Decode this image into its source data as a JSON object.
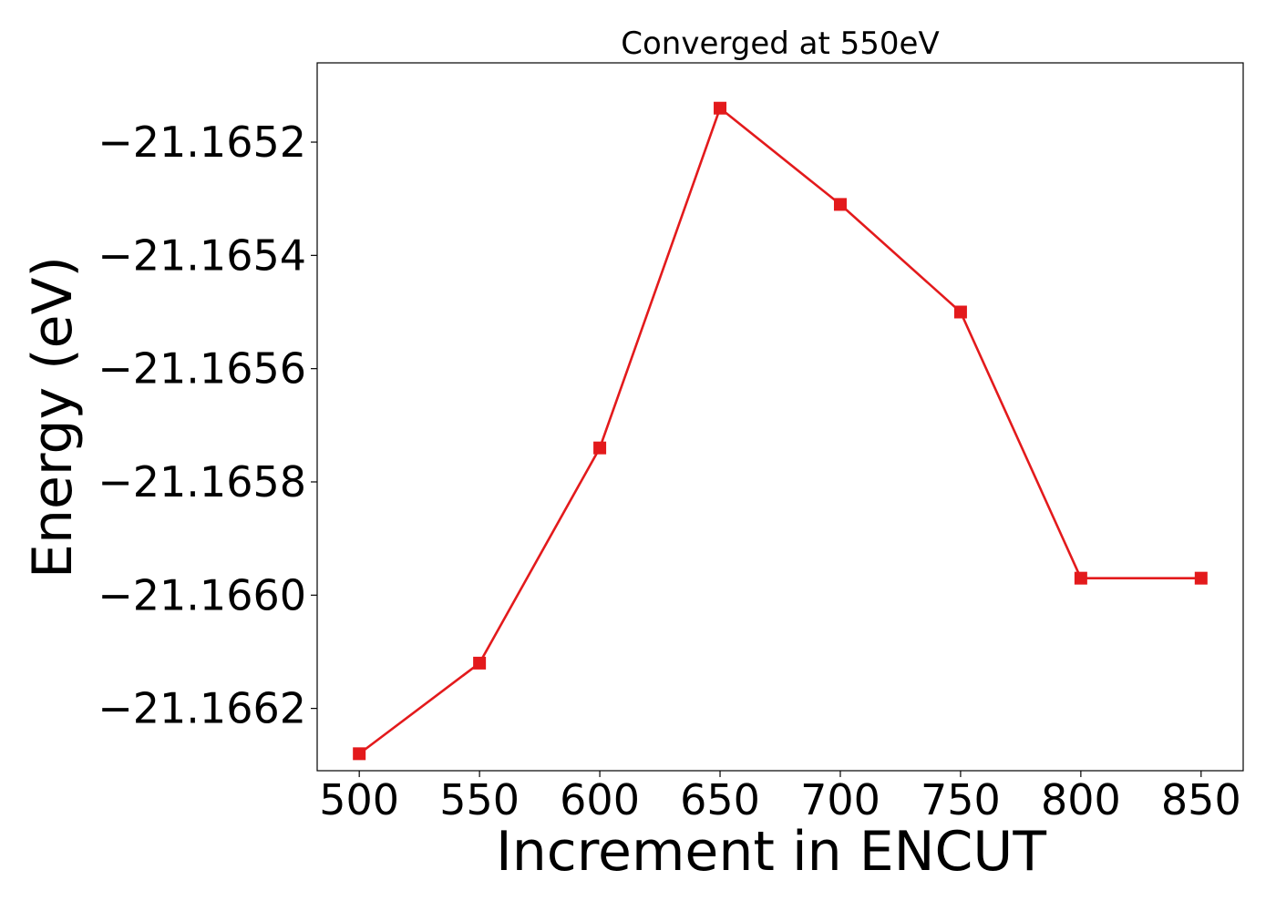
{
  "chart_data": {
    "type": "line",
    "title": "Converged at 550eV",
    "xlabel": "Increment in ENCUT",
    "ylabel": "Energy (eV)",
    "x": [
      500,
      550,
      600,
      650,
      700,
      750,
      800,
      850
    ],
    "series": [
      {
        "values": [
          -21.16628,
          -21.16612,
          -21.16574,
          -21.16514,
          -21.16531,
          -21.1655,
          -21.16597,
          -21.16597
        ],
        "color": "#e31a1c",
        "marker": "square"
      }
    ],
    "xticks": [
      500,
      550,
      600,
      650,
      700,
      750,
      800,
      850
    ],
    "xtick_labels": [
      "500",
      "550",
      "600",
      "650",
      700,
      "750",
      "800",
      "850"
    ],
    "yticks": [
      -21.1652,
      -21.1654,
      -21.1656,
      -21.1658,
      -21.166,
      -21.1662
    ],
    "ytick_labels": [
      "−21.1652",
      "−21.1654",
      "−21.1656",
      "−21.1658",
      "−21.1660",
      "−21.1662"
    ],
    "xlim": [
      482.5,
      867.5
    ],
    "ylim": [
      -21.16631,
      -21.16506
    ],
    "grid": false,
    "legend": false
  }
}
